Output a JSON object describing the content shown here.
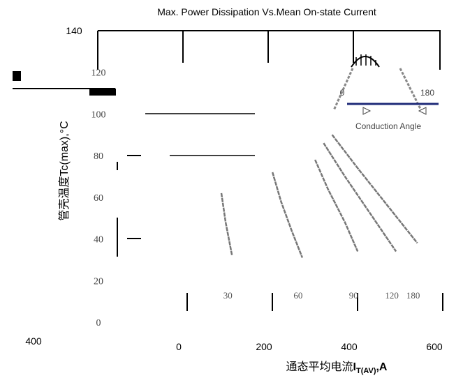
{
  "chart_data": {
    "type": "line",
    "title": "Max. Power Dissipation Vs.Mean On-state Current",
    "xlabel_prefix": "通态平均电流",
    "xlabel_symbol": "I",
    "xlabel_sub": "T(AV)",
    "xlabel_unit": ",A",
    "ylabel": "管壳温度Tc(max),°C",
    "x_ticks": [
      "0",
      "200",
      "400",
      "600"
    ],
    "y_ticks_top": [
      "140",
      "120",
      "100",
      "80",
      "60",
      "40",
      "20",
      "0"
    ],
    "y2_tick_bottom": "400",
    "xlim": [
      0,
      600
    ],
    "ylim": [
      0,
      140
    ],
    "series": [
      {
        "name": "30",
        "x": [
          100,
          110,
          125
        ],
        "y": [
          62,
          48,
          32
        ]
      },
      {
        "name": "60",
        "x": [
          220,
          240,
          265,
          290
        ],
        "y": [
          72,
          58,
          44,
          31
        ]
      },
      {
        "name": "90",
        "x": [
          320,
          350,
          390,
          420
        ],
        "y": [
          78,
          64,
          48,
          34
        ]
      },
      {
        "name": "120",
        "x": [
          340,
          390,
          450,
          510
        ],
        "y": [
          86,
          70,
          52,
          34
        ]
      },
      {
        "name": "180",
        "x": [
          360,
          420,
          490,
          560
        ],
        "y": [
          90,
          74,
          56,
          38
        ]
      }
    ],
    "inset": {
      "start_label": "0",
      "end_label": "180",
      "caption": "Conduction Angle",
      "line_color": "#1e2a78"
    }
  }
}
